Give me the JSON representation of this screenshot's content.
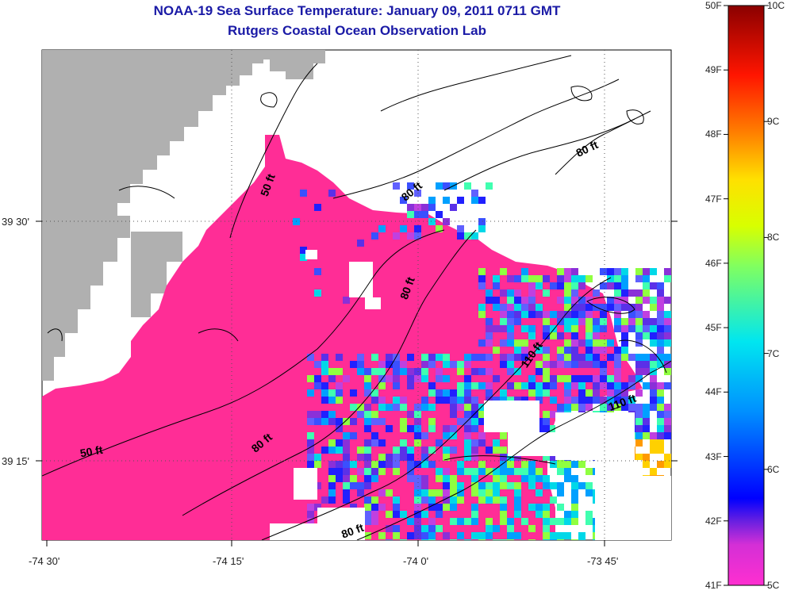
{
  "title": "NOAA-19 Sea Surface Temperature:  January 09, 2011 0711 GMT",
  "subtitle": "Rutgers Coastal Ocean Observation Lab",
  "axes": {
    "x_ticks": [
      "-74 30'",
      "-74 15'",
      "-74 0'",
      "-73 45'"
    ],
    "y_ticks": [
      "39 30'",
      "39 15'"
    ]
  },
  "colorbar": {
    "fahrenheit": [
      "50F",
      "49F",
      "48F",
      "47F",
      "46F",
      "45F",
      "44F",
      "43F",
      "42F",
      "41F"
    ],
    "celsius": [
      "10C",
      "9C",
      "8C",
      "7C",
      "6C",
      "5C"
    ]
  },
  "contour_labels": [
    {
      "text": "50 ft",
      "angle": -70
    },
    {
      "text": "80 ft",
      "angle": -40
    },
    {
      "text": "80 ft",
      "angle": -25
    },
    {
      "text": "80 ft",
      "angle": -70
    },
    {
      "text": "110 ft",
      "angle": -55
    },
    {
      "text": "110 ft",
      "angle": -20
    },
    {
      "text": "50 ft",
      "angle": -10
    },
    {
      "text": "80 ft",
      "angle": -40
    },
    {
      "text": "80 ft",
      "angle": -20
    }
  ],
  "colors": {
    "land": "#b0b0b0",
    "sst_main": "#ff2d96",
    "title": "#1a1aa6"
  }
}
